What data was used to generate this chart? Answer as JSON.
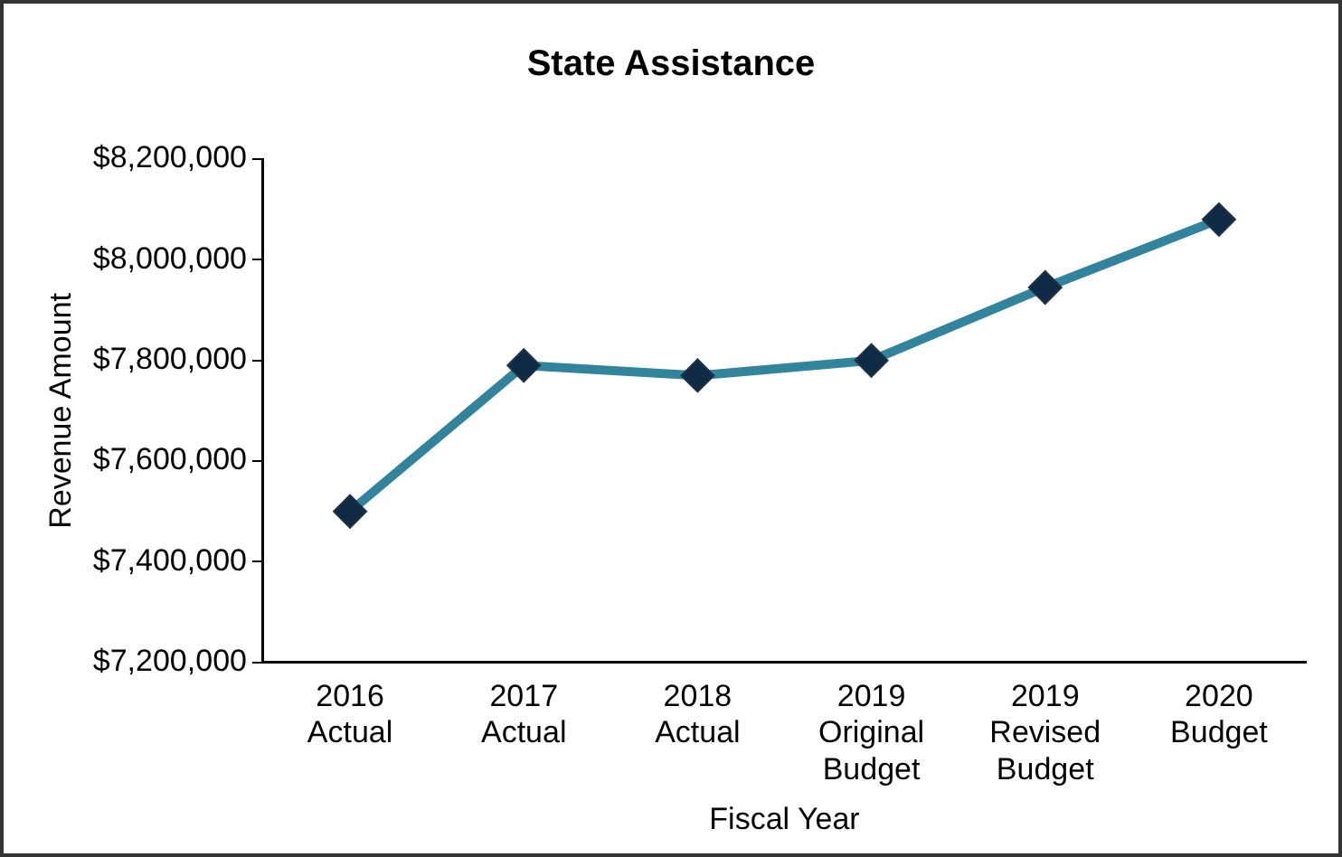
{
  "chart_data": {
    "type": "line",
    "title": "State Assistance",
    "xlabel": "Fiscal Year",
    "ylabel": "Revenue Amount",
    "categories": [
      "2016 Actual",
      "2017 Actual",
      "2018 Actual",
      "2019 Original Budget",
      "2019 Revised Budget",
      "2020 Budget"
    ],
    "series": [
      {
        "color": "#31849b",
        "values": [
          7500000,
          7790000,
          7770000,
          7800000,
          7945000,
          8080000
        ]
      }
    ],
    "ylim": [
      7200000,
      8200000
    ],
    "yticks": [
      {
        "value": 7200000,
        "label": "$7,200,000"
      },
      {
        "value": 7400000,
        "label": "$7,400,000"
      },
      {
        "value": 7600000,
        "label": "$7,600,000"
      },
      {
        "value": 7800000,
        "label": "$7,800,000"
      },
      {
        "value": 8000000,
        "label": "$8,000,000"
      },
      {
        "value": 8200000,
        "label": "$8,200,000"
      }
    ],
    "grid": false,
    "legend": false,
    "marker": "diamond",
    "line_style": "solid"
  }
}
